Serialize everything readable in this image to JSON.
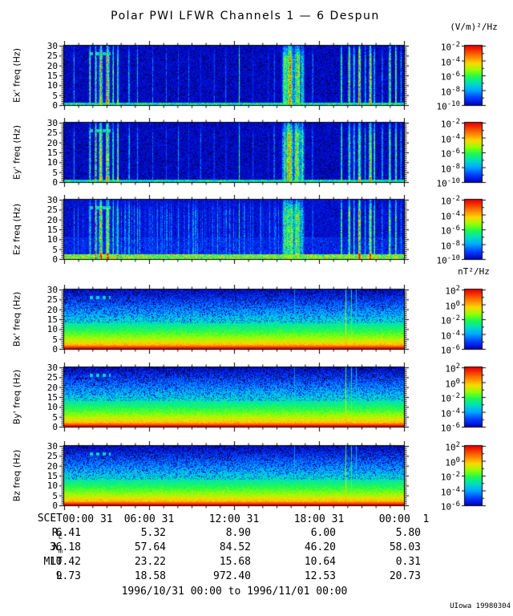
{
  "chart_data": {
    "type": "heatmap",
    "title": "Polar PWI LFWR Channels 1 — 6 Despun",
    "x_axis": {
      "label_prefix": "SCET",
      "ticks": [
        "00:00 31",
        "06:00 31",
        "12:00 31",
        "18:00 31",
        "00:00  1"
      ],
      "range_hours": [
        0,
        24
      ]
    },
    "y_axis": {
      "ticks": [
        30,
        25,
        20,
        15,
        10,
        5,
        0
      ],
      "unit": "Hz"
    },
    "units": {
      "electric": "(V/m)²/Hz",
      "magnetic": "nT²/Hz"
    },
    "colorbar": {
      "base": "10",
      "electric_exponents": [
        "-2",
        "-4",
        "-6",
        "-8",
        "-10"
      ],
      "magnetic_exponents": [
        "2",
        "0",
        "-2",
        "-4",
        "-6"
      ]
    },
    "panels": [
      {
        "id": "ex",
        "ylabel": "Ex' freq (Hz)",
        "kind": "E",
        "seed": 11,
        "spk": 0.13,
        "lowM": 0.9,
        "botH": 1.3,
        "botA": 0.45
      },
      {
        "id": "ey",
        "ylabel": "Ey' freq (Hz)",
        "kind": "E",
        "seed": 27,
        "spk": 0.13,
        "lowM": 0.9,
        "botH": 1.3,
        "botA": 0.45
      },
      {
        "id": "ez",
        "ylabel": "Ez freq (Hz)",
        "kind": "Ez",
        "seed": 39,
        "spk": 0.07,
        "lowM": 1.25,
        "botH": 2.6,
        "botA": 0.6
      },
      {
        "id": "bx",
        "ylabel": "Bx' freq (Hz)",
        "kind": "B",
        "seed": 51
      },
      {
        "id": "by",
        "ylabel": "By' freq (Hz)",
        "kind": "B",
        "seed": 63
      },
      {
        "id": "bz",
        "ylabel": "Bz freq (Hz)",
        "kind": "B",
        "seed": 75
      }
    ],
    "e_bursts": [
      [
        0.028,
        0.0015,
        0.38,
        0.2
      ],
      [
        0.075,
        0.002,
        0.6,
        0.3
      ],
      [
        0.092,
        0.002,
        0.68,
        0.5
      ],
      [
        0.107,
        0.004,
        0.72,
        0.85
      ],
      [
        0.127,
        0.004,
        0.7,
        0.9
      ],
      [
        0.143,
        0.002,
        0.55,
        0.6
      ],
      [
        0.157,
        0.002,
        0.68,
        0.8
      ],
      [
        0.19,
        0.0015,
        0.45,
        0.3
      ],
      [
        0.215,
        0.0015,
        0.35,
        0.2
      ],
      [
        0.26,
        0.0012,
        0.3,
        0.2
      ],
      [
        0.3,
        0.0012,
        0.32,
        0.2
      ],
      [
        0.335,
        0.0012,
        0.3,
        0.2
      ],
      [
        0.365,
        0.0012,
        0.28,
        0.2
      ],
      [
        0.4,
        0.0012,
        0.3,
        0.2
      ],
      [
        0.44,
        0.0012,
        0.28,
        0.2
      ],
      [
        0.475,
        0.0012,
        0.3,
        0.2
      ],
      [
        0.515,
        0.0008,
        0.88,
        0.6
      ],
      [
        0.555,
        0.0012,
        0.3,
        0.2
      ],
      [
        0.6,
        0.0012,
        0.28,
        0.2
      ],
      [
        0.617,
        0.0015,
        0.35,
        0.2
      ],
      [
        0.648,
        0.006,
        0.55,
        0.3
      ],
      [
        0.662,
        0.01,
        0.68,
        0.35
      ],
      [
        0.685,
        0.008,
        0.66,
        0.35
      ],
      [
        0.7,
        0.004,
        0.5,
        0.3
      ],
      [
        0.73,
        0.0015,
        0.3,
        0.2
      ],
      [
        0.815,
        0.002,
        0.55,
        0.4
      ],
      [
        0.838,
        0.0025,
        0.62,
        0.5
      ],
      [
        0.852,
        0.002,
        0.55,
        0.4
      ],
      [
        0.868,
        0.003,
        0.7,
        0.9
      ],
      [
        0.885,
        0.0015,
        0.45,
        0.3
      ],
      [
        0.9,
        0.003,
        0.72,
        0.95
      ],
      [
        0.912,
        0.002,
        0.5,
        0.4
      ],
      [
        0.935,
        0.0015,
        0.4,
        0.25
      ],
      [
        0.957,
        0.0025,
        0.68,
        0.6
      ],
      [
        0.975,
        0.002,
        0.6,
        0.4
      ],
      [
        0.99,
        0.0015,
        0.45,
        0.3
      ]
    ],
    "b_lines": [
      [
        0.828,
        0.82
      ],
      [
        0.845,
        0.66
      ],
      [
        0.858,
        0.5
      ],
      [
        0.677,
        0.45
      ]
    ],
    "interference_line": {
      "freq_hz": 26,
      "x_start": 0.073,
      "x_end": 0.135
    },
    "orbit_rows": [
      {
        "label": "R",
        "sub": "E",
        "values": [
          "6.41",
          "5.32",
          "8.90",
          "6.00",
          "5.80"
        ]
      },
      {
        "label": "λ",
        "sub": "m",
        "values": [
          "36.18",
          "57.64",
          "84.52",
          "46.20",
          "58.03"
        ]
      },
      {
        "label": "MLT",
        "sub": "",
        "values": [
          "10.42",
          "23.22",
          "15.68",
          "10.64",
          "0.31"
        ]
      },
      {
        "label": "L",
        "sub": "",
        "values": [
          "9.73",
          "18.58",
          "972.40",
          "12.53",
          "20.73"
        ]
      }
    ],
    "footer": "1996/10/31 00:00 to 1996/11/01 00:00",
    "credit": "UIowa 19980304",
    "colors": {
      "background": "#ffffff",
      "frame": "#000000",
      "cmap_low": "#0000be",
      "cmap_high": "#eb0000"
    }
  }
}
